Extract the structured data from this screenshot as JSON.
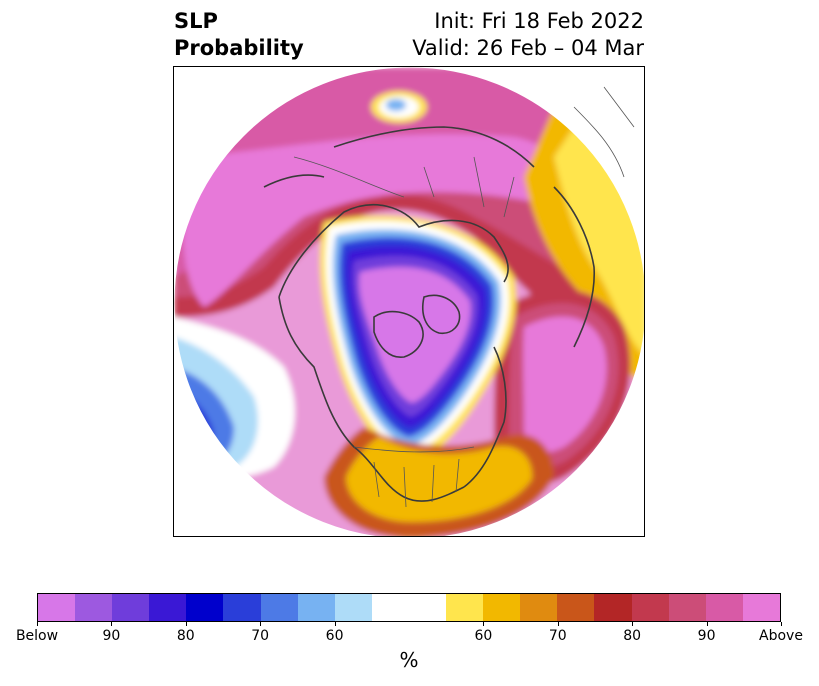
{
  "title": {
    "line1": "SLP",
    "line2": "Probability"
  },
  "info": {
    "init": "Init: Fri 18 Feb 2022",
    "valid": "Valid: 26 Feb – 04 Mar"
  },
  "colorbar": {
    "unit": "%",
    "colors": [
      "#d777e8",
      "#9d59e0",
      "#6f3ddb",
      "#3a18d5",
      "#0000cc",
      "#2a3ed9",
      "#4d7ae6",
      "#77b2f2",
      "#aedcf8",
      "#ffffff",
      "#ffffff",
      "#ffe54d",
      "#f2b800",
      "#e08b10",
      "#c9561a",
      "#b32626",
      "#c2394e",
      "#cc4d78",
      "#d85aa6",
      "#e779d9"
    ],
    "ticks": [
      "Below",
      "90",
      "80",
      "70",
      "60",
      "60",
      "70",
      "80",
      "90",
      "Above"
    ]
  },
  "map": {
    "projection": "north-polar-stereographic",
    "features": [
      "coastlines",
      "country-borders",
      "state-borders"
    ]
  }
}
